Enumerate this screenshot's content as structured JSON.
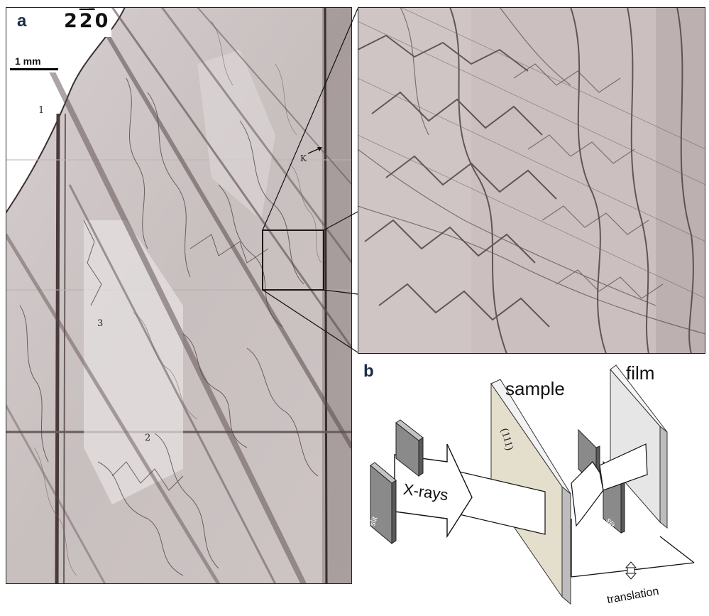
{
  "panel_a": {
    "letter": "a",
    "reflection_digits": [
      "2",
      "2",
      "0"
    ],
    "scale_bar_label": "1 mm",
    "markers": [
      {
        "id": "1",
        "label": "1"
      },
      {
        "id": "2",
        "label": "2"
      },
      {
        "id": "3",
        "label": "3"
      },
      {
        "id": "K",
        "label": "K"
      }
    ]
  },
  "panel_b": {
    "letter": "b",
    "labels": {
      "sample": "sample",
      "film": "film",
      "xrays": "X-rays",
      "slit_left": "slit",
      "slit_right": "slit",
      "orientation": "(111)",
      "translation": "translation"
    }
  },
  "colors": {
    "topograph_bg": "#cfc6c6",
    "dislocation": "#4a3b3d",
    "sample_face": "#e4dfcd",
    "slit_gray": "#8a8a8a",
    "panel_letter": "#1d2a4a"
  }
}
